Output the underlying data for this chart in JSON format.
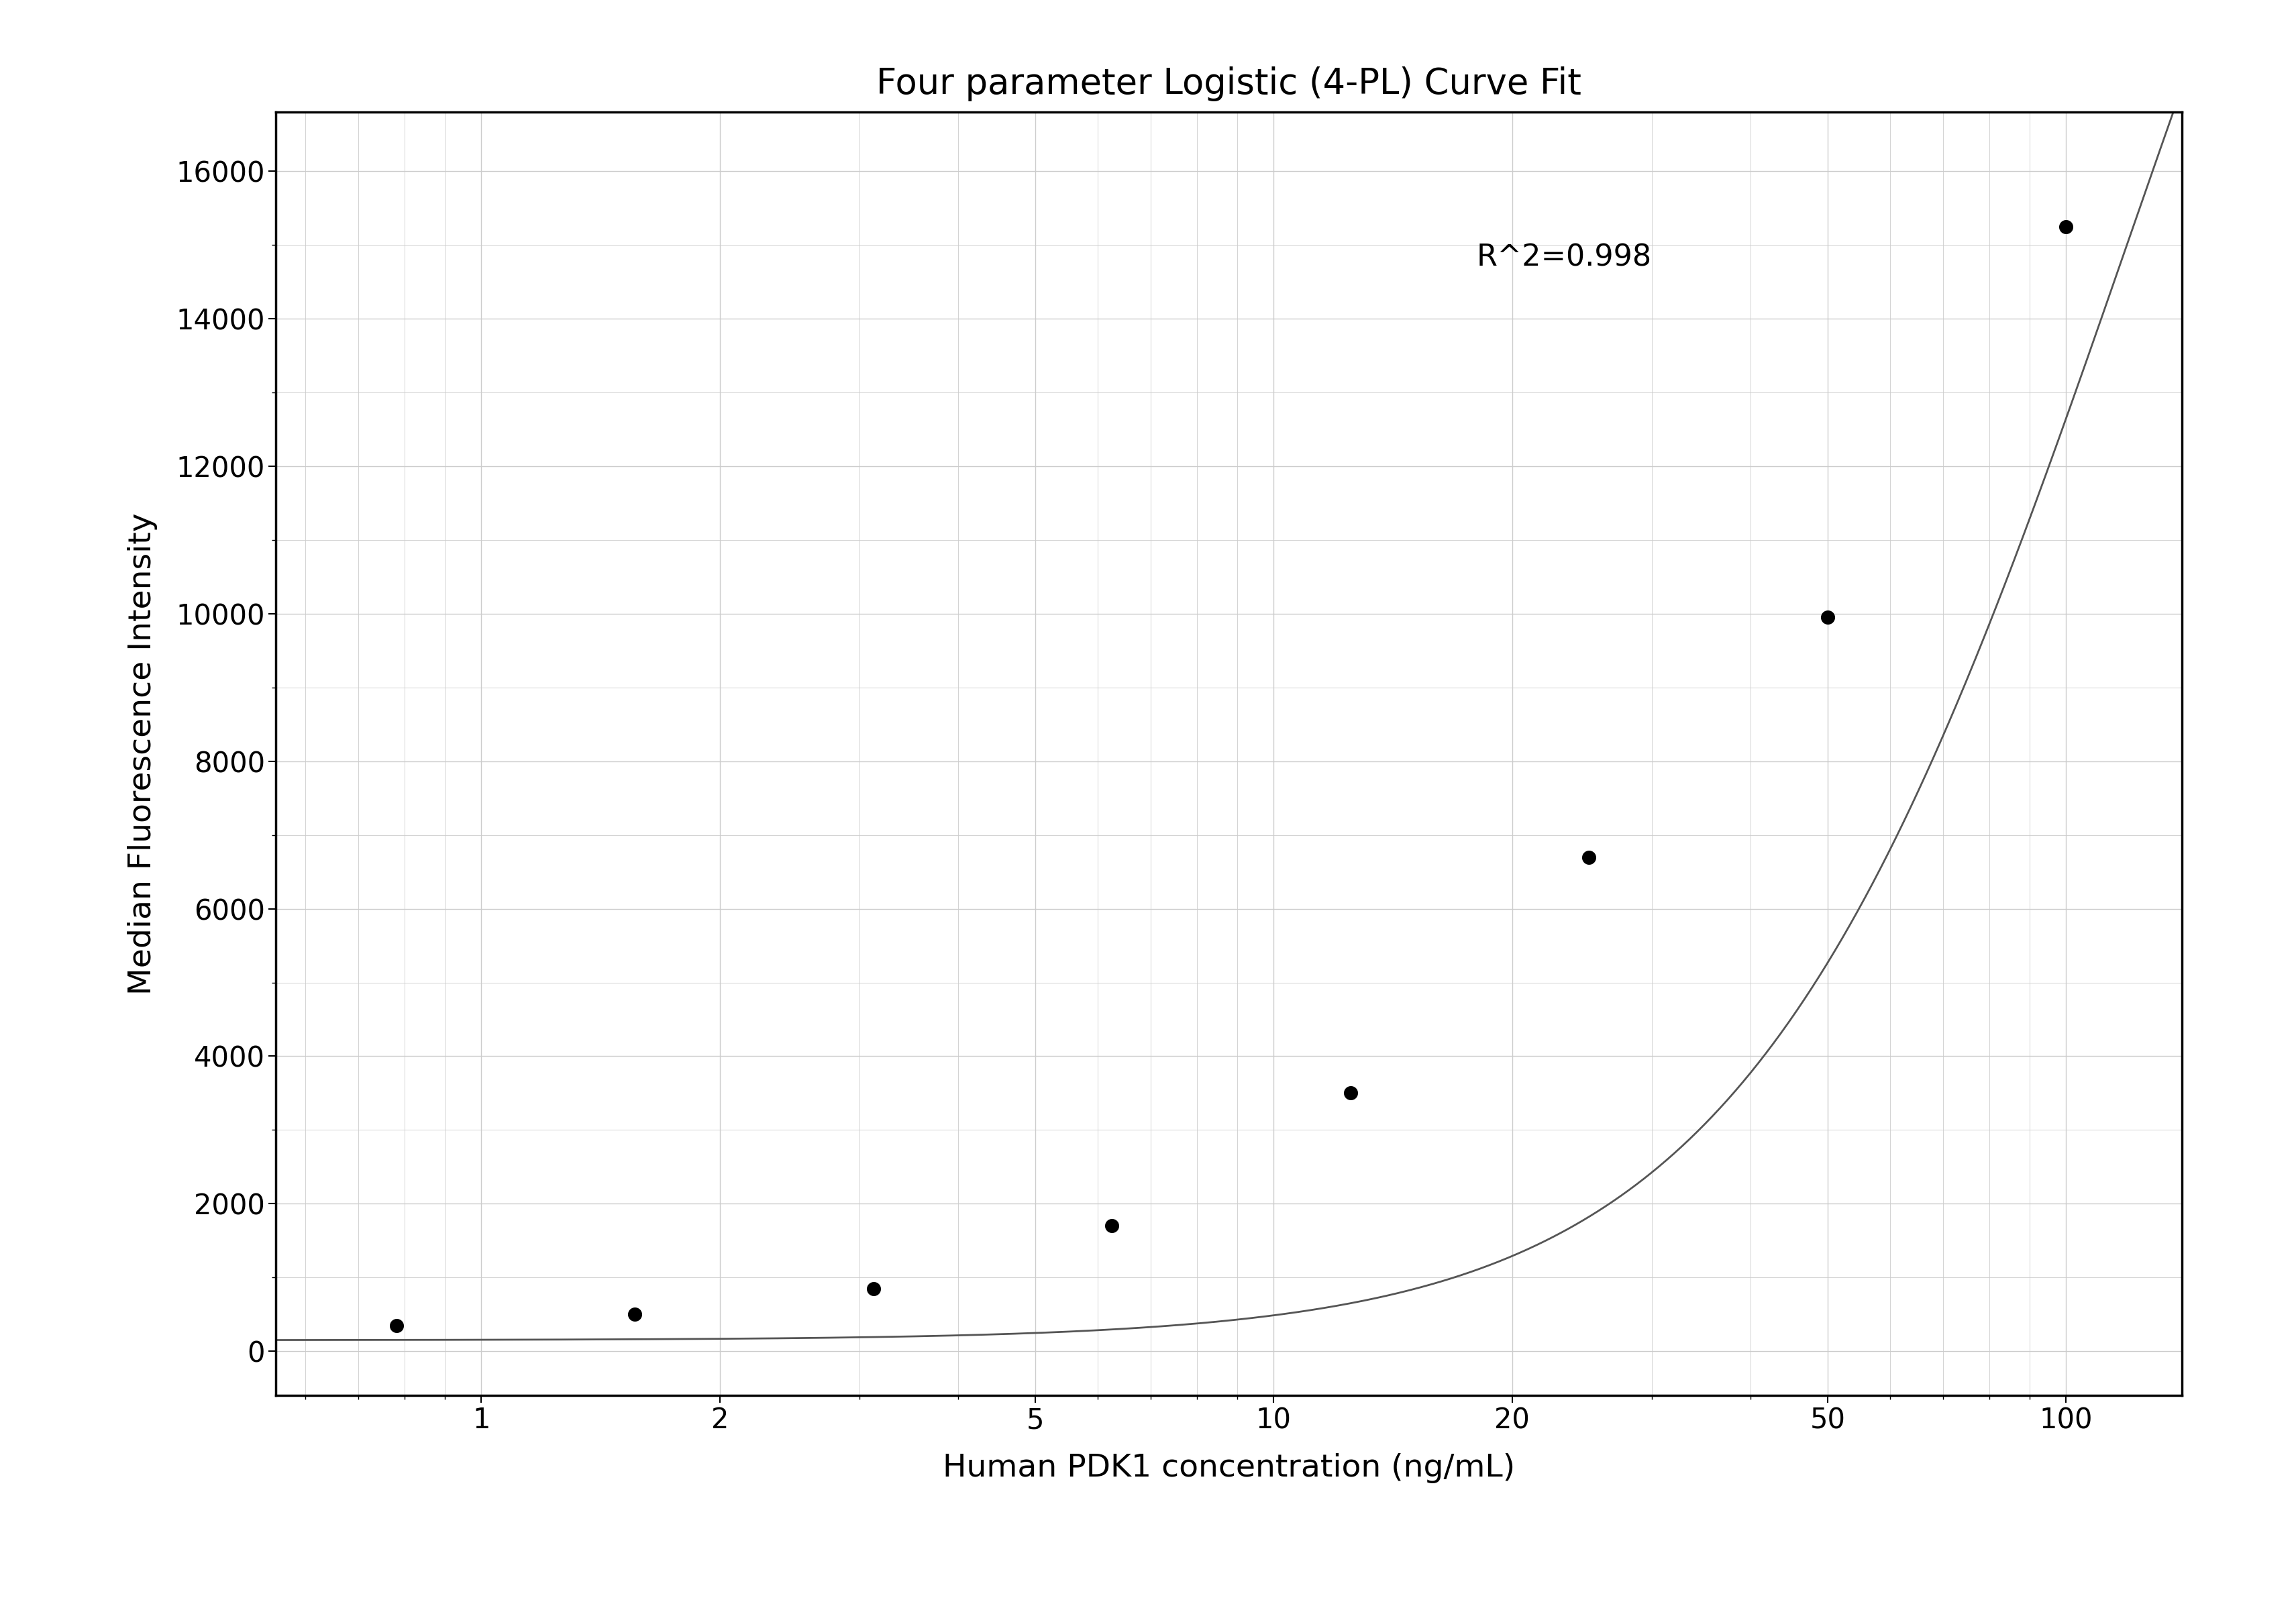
{
  "title": "Four parameter Logistic (4-PL) Curve Fit",
  "xlabel": "Human PDK1 concentration (ng/mL)",
  "ylabel": "Median Fluorescence Intensity",
  "r_squared": "R^2=0.998",
  "x_data": [
    0.781,
    1.563,
    3.125,
    6.25,
    12.5,
    25.0,
    50.0,
    100.0
  ],
  "y_data": [
    350,
    500,
    850,
    1700,
    3500,
    6700,
    9950,
    15250
  ],
  "xlim_log": [
    0.55,
    140
  ],
  "ylim": [
    -600,
    16800
  ],
  "yticks": [
    0,
    2000,
    4000,
    6000,
    8000,
    10000,
    12000,
    14000,
    16000
  ],
  "xticks": [
    1,
    2,
    5,
    10,
    20,
    50,
    100
  ],
  "4pl_params": {
    "A": 150,
    "B": 1.8,
    "C": 120,
    "D": 30000
  },
  "point_color": "#000000",
  "line_color": "#555555",
  "grid_color": "#cccccc",
  "background_color": "#ffffff",
  "title_fontsize": 38,
  "label_fontsize": 34,
  "tick_fontsize": 30,
  "annotation_fontsize": 32,
  "point_size": 200,
  "line_width": 2.0
}
